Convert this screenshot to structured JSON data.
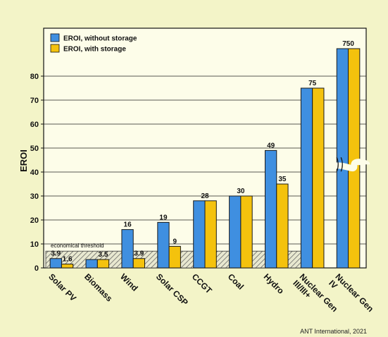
{
  "chart_data": {
    "type": "bar",
    "ylabel": "EROI",
    "xlabel": "",
    "ylim": [
      0,
      90
    ],
    "yticks": [
      0,
      10,
      20,
      30,
      40,
      50,
      60,
      70,
      80
    ],
    "grid": true,
    "axis_break": true,
    "legend_position": "top-left",
    "categories": [
      "Solar PV",
      "Biomass",
      "Wind",
      "Solar CSP",
      "CCGT",
      "Coal",
      "Hydro",
      "Nuclear Gen III/III+",
      "Nuclear Gen IV"
    ],
    "series": [
      {
        "name": "EROI, without storage",
        "color": "#3f8fe0",
        "values": [
          3.9,
          3.5,
          16,
          19,
          28,
          30,
          49,
          75,
          750
        ],
        "labels": [
          "3.9",
          "",
          "16",
          "19",
          "28",
          "30",
          "49",
          "75",
          "750"
        ]
      },
      {
        "name": "EROI, with storage",
        "color": "#f4c20d",
        "values": [
          1.6,
          3.5,
          3.9,
          9,
          28,
          30,
          35,
          75,
          750
        ],
        "labels": [
          "1.6",
          "3.5",
          "3.9",
          "9",
          "",
          "",
          "35",
          "",
          ""
        ]
      }
    ],
    "threshold": {
      "value": 7,
      "label": "economical threshold"
    },
    "credit": "ANT International, 2021"
  }
}
